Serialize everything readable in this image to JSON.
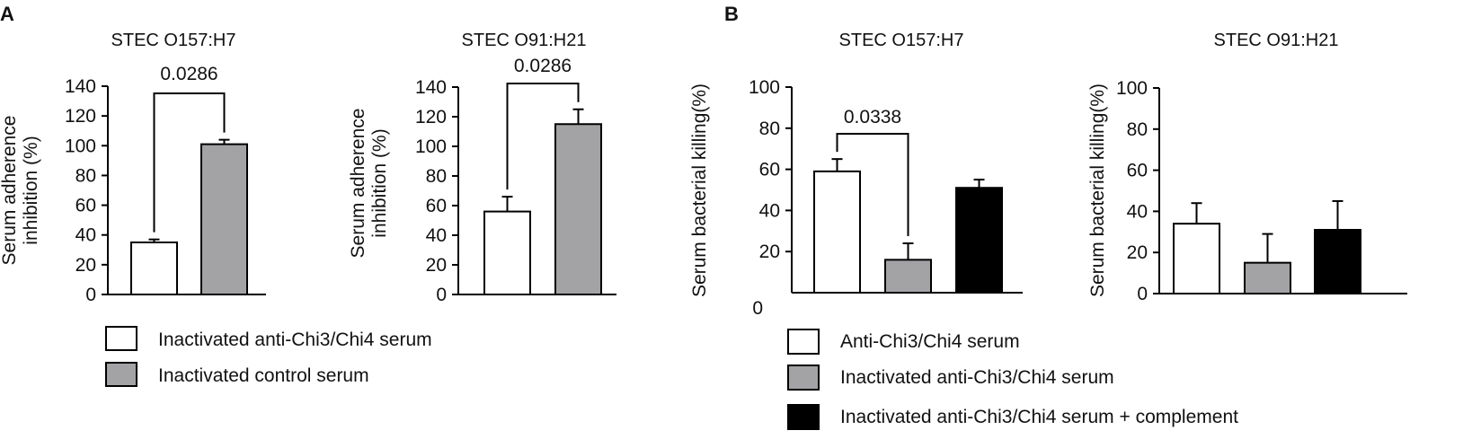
{
  "panels": {
    "A": {
      "label": "A"
    },
    "B": {
      "label": "B"
    }
  },
  "legend_a": {
    "items": [
      {
        "label": "Inactivated anti-Chi3/Chi4 serum",
        "color": "#ffffff"
      },
      {
        "label": "Inactivated control serum",
        "color": "#a3a3a5"
      }
    ]
  },
  "legend_b": {
    "items": [
      {
        "label": "Anti-Chi3/Chi4 serum",
        "color": "#ffffff"
      },
      {
        "label": "Inactivated anti-Chi3/Chi4 serum",
        "color": "#a3a3a5"
      },
      {
        "label": "Inactivated anti-Chi3/Chi4 serum + complement",
        "color": "#000000"
      }
    ]
  },
  "chart_data": [
    {
      "type": "bar",
      "panel": "A",
      "title": "STEC O157:H7",
      "ylabel_lines": [
        "Serum adherence",
        "inhibition (%)"
      ],
      "ylim": [
        0,
        140
      ],
      "yticks": [
        0,
        20,
        40,
        60,
        80,
        100,
        120,
        140
      ],
      "categories": [
        "Inactivated anti-Chi3/Chi4 serum",
        "Inactivated control serum"
      ],
      "values": [
        35,
        101
      ],
      "errors": [
        2,
        3
      ],
      "colors": [
        "#ffffff",
        "#a3a3a5"
      ],
      "annotations": [
        {
          "bars": [
            0,
            1
          ],
          "text": "0.0286"
        }
      ]
    },
    {
      "type": "bar",
      "panel": "A",
      "title": "STEC O91:H21",
      "ylabel_lines": [
        "Serum adherence",
        "inhibition (%)"
      ],
      "ylim": [
        0,
        140
      ],
      "yticks": [
        0,
        20,
        40,
        60,
        80,
        100,
        120,
        140
      ],
      "categories": [
        "Inactivated anti-Chi3/Chi4 serum",
        "Inactivated control serum"
      ],
      "values": [
        56,
        115
      ],
      "errors": [
        10,
        10
      ],
      "colors": [
        "#ffffff",
        "#a3a3a5"
      ],
      "annotations": [
        {
          "bars": [
            0,
            1
          ],
          "text": "0.0286"
        }
      ]
    },
    {
      "type": "bar",
      "panel": "B",
      "title": "STEC O157:H7",
      "ylabel_lines": [
        "Serum bacterial killing(%)"
      ],
      "ylim": [
        0,
        100
      ],
      "yticks": [
        20,
        40,
        60,
        80,
        100
      ],
      "extra_zero_label": "0",
      "categories": [
        "Anti-Chi3/Chi4 serum",
        "Inactivated anti-Chi3/Chi4 serum",
        "Inactivated anti-Chi3/Chi4 serum + complement"
      ],
      "values": [
        59,
        16,
        51
      ],
      "errors": [
        6,
        8,
        4
      ],
      "colors": [
        "#ffffff",
        "#a3a3a5",
        "#000000"
      ],
      "annotations": [
        {
          "bars": [
            0,
            1
          ],
          "text": "0.0338"
        }
      ]
    },
    {
      "type": "bar",
      "panel": "B",
      "title": "STEC O91:H21",
      "ylabel_lines": [
        "Serum bacterial killing(%)"
      ],
      "ylim": [
        0,
        100
      ],
      "yticks": [
        0,
        20,
        40,
        60,
        80,
        100
      ],
      "categories": [
        "Anti-Chi3/Chi4 serum",
        "Inactivated anti-Chi3/Chi4 serum",
        "Inactivated anti-Chi3/Chi4 serum + complement"
      ],
      "values": [
        34,
        15,
        31
      ],
      "errors": [
        10,
        14,
        14
      ],
      "colors": [
        "#ffffff",
        "#a3a3a5",
        "#000000"
      ],
      "annotations": []
    }
  ]
}
